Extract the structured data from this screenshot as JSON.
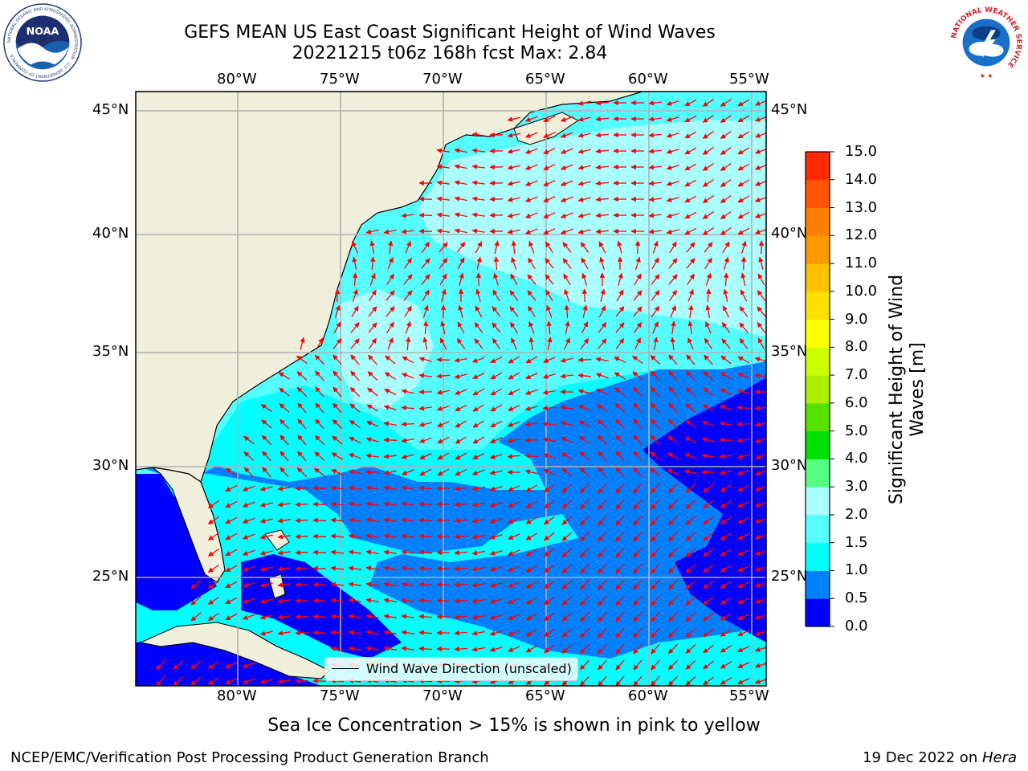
{
  "header": {
    "title_line1": "GEFS MEAN US East Coast Significant Height of Wind Waves",
    "title_line2": "20221215 t06z 168h fcst   Max: 2.84"
  },
  "logos": {
    "noaa": {
      "text": "NOAA",
      "ring_text": "NATIONAL OCEANIC AND ATMOSPHERIC ADMINISTRATION · U.S. DEPARTMENT OF COMMERCE"
    },
    "nws": {
      "ring_text": "NATIONAL WEATHER SERVICE"
    }
  },
  "map": {
    "lon_labels": [
      "80°W",
      "75°W",
      "70°W",
      "65°W",
      "60°W",
      "55°W"
    ],
    "lat_labels": [
      "45°N",
      "40°N",
      "35°N",
      "30°N",
      "25°N"
    ],
    "legend_label": "Wind Wave Direction (unscaled)",
    "colors": {
      "land": "#efefdc",
      "coast": "#000000",
      "grid": "#b0b0b0",
      "arrow": "#ff0000"
    }
  },
  "colorbar": {
    "title": "Significant Height of Wind Waves [m]",
    "labels": [
      "15.0",
      "14.0",
      "13.0",
      "12.0",
      "11.0",
      "10.0",
      "9.0",
      "8.0",
      "7.0",
      "6.0",
      "5.0",
      "4.0",
      "3.0",
      "2.0",
      "1.5",
      "1.0",
      "0.5",
      "0.0"
    ],
    "colors": [
      "#0000ff",
      "#0080ff",
      "#00ffff",
      "#55ffff",
      "#aaffff",
      "#55ff80",
      "#00e000",
      "#55e000",
      "#aaee00",
      "#ccff00",
      "#ffff00",
      "#ffe000",
      "#ffc000",
      "#ff9900",
      "#ff8000",
      "#ff5500",
      "#ff2a00"
    ]
  },
  "footer": {
    "seaice_note": "Sea Ice Concentration > 15% is shown in pink to yellow",
    "credit": "NCEP/EMC/Verification Post Processing Product Generation Branch",
    "date_prefix": "19 Dec 2022 on ",
    "machine": "Hera"
  }
}
